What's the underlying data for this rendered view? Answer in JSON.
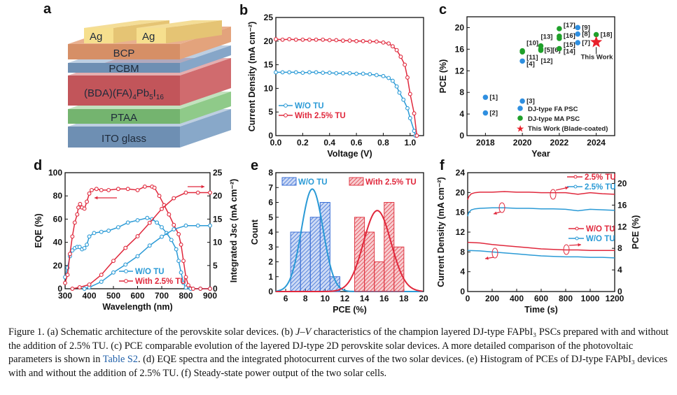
{
  "colors": {
    "red": "#e0283c",
    "blue": "#2a9ad6",
    "green": "#1fa02a",
    "star": "#e8202a",
    "fa_dot": "#2f8fe0",
    "bar_blue": "#3b6fd6",
    "bar_red": "#e03a46"
  },
  "panel_a": {
    "letter": "a",
    "layers": [
      "BCP",
      "PCBM",
      "(BDA)(FA)4Pb5I16",
      "PTAA",
      "ITO glass"
    ],
    "perovskite_parts": [
      "(BDA)(FA)",
      "4",
      "Pb",
      "5",
      "I",
      "16"
    ],
    "electrodes": [
      "Ag",
      "Ag"
    ]
  },
  "chart_data": [
    {
      "panel": "b",
      "type": "line",
      "letter": "b",
      "xlabel": "Voltage (V)",
      "ylabel": "Current Density (mA cm⁻²)",
      "xlim": [
        0,
        1.1
      ],
      "ylim": [
        0,
        25
      ],
      "xticks": [
        "0.0",
        "0.2",
        "0.4",
        "0.6",
        "0.8",
        "1.0"
      ],
      "yticks": [
        "0",
        "5",
        "10",
        "15",
        "20",
        "25"
      ],
      "legend": "lower-left",
      "series": [
        {
          "name": "W/O TU",
          "color": "blue",
          "x": [
            0,
            0.05,
            0.1,
            0.15,
            0.2,
            0.25,
            0.3,
            0.35,
            0.4,
            0.45,
            0.5,
            0.55,
            0.6,
            0.65,
            0.7,
            0.75,
            0.8,
            0.84,
            0.87,
            0.9,
            0.92,
            0.95,
            0.98,
            1.0,
            1.03,
            1.04
          ],
          "y": [
            13.4,
            13.4,
            13.4,
            13.4,
            13.3,
            13.4,
            13.4,
            13.3,
            13.3,
            13.2,
            13.2,
            13.2,
            13.1,
            13.1,
            13.0,
            12.8,
            12.6,
            12.2,
            11.6,
            10.4,
            9.1,
            7.6,
            5.8,
            3.7,
            1.0,
            0
          ]
        },
        {
          "name": "With 2.5% TU",
          "color": "red",
          "x": [
            0,
            0.05,
            0.1,
            0.15,
            0.2,
            0.25,
            0.3,
            0.35,
            0.4,
            0.45,
            0.5,
            0.55,
            0.6,
            0.65,
            0.7,
            0.75,
            0.8,
            0.84,
            0.87,
            0.9,
            0.93,
            0.96,
            0.98,
            1.0,
            1.03,
            1.05
          ],
          "y": [
            20.4,
            20.3,
            20.4,
            20.3,
            20.3,
            20.3,
            20.3,
            20.3,
            20.2,
            20.2,
            20.1,
            20.1,
            20.0,
            20.0,
            19.9,
            19.9,
            19.7,
            19.5,
            18.9,
            18.1,
            16.7,
            15.0,
            12.3,
            8.8,
            4.7,
            0
          ]
        }
      ]
    },
    {
      "panel": "c",
      "type": "scatter",
      "letter": "c",
      "xlabel": "Year",
      "ylabel": "PCE (%)",
      "xlim": [
        2017,
        2025
      ],
      "ylim": [
        0,
        22
      ],
      "xticks": [
        "2018",
        "2020",
        "2022",
        "2024"
      ],
      "yticks": [
        "0",
        "4",
        "8",
        "12",
        "16",
        "20"
      ],
      "legend": "lower-right",
      "series": [
        {
          "name": "DJ-type FA PSC",
          "color": "fa_dot",
          "points": [
            {
              "x": 2018,
              "y": 7.1,
              "label": "[1]"
            },
            {
              "x": 2018,
              "y": 4.2,
              "label": "[2]"
            },
            {
              "x": 2020,
              "y": 6.4,
              "label": "[3]"
            },
            {
              "x": 2020,
              "y": 13.8,
              "label": "[4]"
            },
            {
              "x": 2023,
              "y": 17.2,
              "label": "[7]"
            },
            {
              "x": 2023,
              "y": 18.8,
              "label": "[8]"
            },
            {
              "x": 2023,
              "y": 20.0,
              "label": "[9]"
            }
          ]
        },
        {
          "name": "DJ-type MA PSC",
          "color": "green",
          "points": [
            {
              "x": 2020,
              "y": 15.7,
              "label": "[10]"
            },
            {
              "x": 2020,
              "y": 15.5,
              "label": "[11]"
            },
            {
              "x": 2021,
              "y": 15.8,
              "label": "[12]"
            },
            {
              "x": 2021,
              "y": 16.6,
              "label": "[13]"
            },
            {
              "x": 2021,
              "y": 16.0,
              "label": "[5][6]"
            },
            {
              "x": 2022,
              "y": 16.1,
              "label": "[14]"
            },
            {
              "x": 2022,
              "y": 18.0,
              "label": "[15]"
            },
            {
              "x": 2022,
              "y": 18.4,
              "label": "[16]"
            },
            {
              "x": 2022,
              "y": 19.8,
              "label": "[17]"
            },
            {
              "x": 2024,
              "y": 18.7,
              "label": "[18]"
            }
          ]
        },
        {
          "name": "This Work (Blade-coated)",
          "color": "star",
          "marker": "star",
          "points": [
            {
              "x": 2024,
              "y": 17.3,
              "label": "This Work"
            }
          ]
        }
      ]
    },
    {
      "panel": "d",
      "type": "line",
      "letter": "d",
      "xlabel": "Wavelength (nm)",
      "ylabel": "EQE (%)",
      "y2label": "Integrated Jsc (mA cm⁻²)",
      "xlim": [
        300,
        900
      ],
      "ylim": [
        0,
        100
      ],
      "y2lim": [
        0,
        25
      ],
      "xticks": [
        "300",
        "400",
        "500",
        "600",
        "700",
        "800",
        "900"
      ],
      "yticks": [
        "0",
        "20",
        "40",
        "60",
        "80",
        "100"
      ],
      "y2ticks": [
        "0",
        "5",
        "10",
        "15",
        "20",
        "25"
      ],
      "legend": "lower-center",
      "series": [
        {
          "name": "W/O TU",
          "color": "blue",
          "axis": "left",
          "legend": true,
          "x": [
            300,
            310,
            320,
            330,
            340,
            350,
            360,
            370,
            380,
            390,
            400,
            420,
            450,
            480,
            520,
            560,
            600,
            640,
            660,
            680,
            700,
            720,
            740,
            760,
            770,
            780,
            790,
            800,
            820,
            860,
            900
          ],
          "y": [
            10,
            18,
            28,
            33,
            35,
            36,
            36,
            34,
            35,
            38,
            45,
            48,
            49,
            50,
            53,
            57,
            59,
            61,
            60,
            57,
            53,
            48,
            42,
            34,
            24,
            14,
            5,
            1,
            0,
            0,
            0
          ]
        },
        {
          "name": "With 2.5% TU",
          "color": "red",
          "axis": "left",
          "legend": true,
          "x": [
            300,
            310,
            320,
            330,
            340,
            350,
            355,
            362,
            370,
            380,
            390,
            400,
            410,
            430,
            450,
            480,
            520,
            560,
            600,
            630,
            660,
            670,
            690,
            710,
            730,
            750,
            770,
            780,
            790,
            800,
            810,
            830,
            860,
            900
          ],
          "y": [
            5,
            12,
            30,
            45,
            57,
            64,
            70,
            73,
            70,
            69,
            75,
            82,
            85,
            86,
            85,
            85,
            86,
            86,
            85,
            88,
            88,
            87,
            80,
            72,
            64,
            55,
            47,
            38,
            24,
            10,
            3,
            0,
            0,
            0
          ]
        },
        {
          "name": "W/O TU integrated",
          "color": "blue",
          "axis": "right",
          "legend": false,
          "x": [
            380,
            400,
            450,
            500,
            550,
            600,
            650,
            700,
            750,
            800,
            850,
            900
          ],
          "y": [
            0,
            0.3,
            1.5,
            3.5,
            5.2,
            7.0,
            9.3,
            11.2,
            12.8,
            13.6,
            13.6,
            13.6
          ]
        },
        {
          "name": "With 2.5% TU integrated",
          "color": "red",
          "axis": "right",
          "legend": false,
          "x": [
            330,
            360,
            400,
            450,
            500,
            550,
            600,
            650,
            700,
            750,
            800,
            850,
            900
          ],
          "y": [
            0,
            0.3,
            0.9,
            3.0,
            6.0,
            8.8,
            11.3,
            14.2,
            17.2,
            19.5,
            20.7,
            20.7,
            20.7
          ]
        }
      ]
    },
    {
      "panel": "e",
      "type": "bar",
      "letter": "e",
      "xlabel": "PCE (%)",
      "ylabel": "Count",
      "xlim": [
        5,
        20
      ],
      "ylim": [
        0,
        8
      ],
      "xticks": [
        "6",
        "8",
        "10",
        "12",
        "14",
        "16",
        "18",
        "20"
      ],
      "yticks": [
        "0",
        "1",
        "2",
        "3",
        "4",
        "5",
        "6",
        "7",
        "8"
      ],
      "legend": "top",
      "series": [
        {
          "name": "W/O TU",
          "color": "bar_blue",
          "line": "blue",
          "bin_centers": [
            7,
            8,
            9,
            10,
            11
          ],
          "counts": [
            4,
            4,
            5,
            6,
            1
          ],
          "fit_mean": 8.7,
          "fit_sd": 1.1,
          "fit_peak": 6.9
        },
        {
          "name": "With 2.5%  TU",
          "color": "bar_red",
          "line": "red",
          "bin_centers": [
            13.5,
            14.5,
            15.5,
            16.5,
            17.5
          ],
          "counts": [
            5,
            4,
            2,
            6,
            3
          ],
          "fit_mean": 15.3,
          "fit_sd": 1.4,
          "fit_peak": 5.45
        }
      ]
    },
    {
      "panel": "f",
      "type": "line",
      "letter": "f",
      "xlabel": "Time (s)",
      "ylabel": "Current Density (mA cm⁻²)",
      "y2label": "PCE (%)",
      "xlim": [
        0,
        1200
      ],
      "ylim": [
        0,
        24
      ],
      "y2lim": [
        0,
        22
      ],
      "xticks": [
        "0",
        "200",
        "400",
        "600",
        "800",
        "1000",
        "1200"
      ],
      "yticks": [
        "0",
        "4",
        "8",
        "12",
        "16",
        "20",
        "24"
      ],
      "y2ticks": [
        "0",
        "4",
        "8",
        "12",
        "16",
        "20"
      ],
      "legend": "right",
      "series": [
        {
          "name": "2.5% TU",
          "color": "red",
          "axis": "right",
          "x": [
            0,
            10,
            30,
            60,
            100,
            200,
            300,
            400,
            500,
            600,
            700,
            800,
            900,
            1000,
            1100,
            1200
          ],
          "y": [
            17.0,
            17.6,
            18.1,
            18.3,
            18.4,
            18.4,
            18.5,
            18.4,
            18.4,
            18.3,
            18.3,
            18.3,
            18.0,
            18.3,
            18.1,
            18.0
          ]
        },
        {
          "name": "2.5% TU",
          "color": "blue",
          "axis": "left",
          "x": [
            0,
            10,
            30,
            60,
            100,
            200,
            300,
            400,
            500,
            600,
            700,
            800,
            900,
            1000,
            1100,
            1200
          ],
          "y": [
            15.2,
            16.0,
            16.5,
            16.7,
            16.8,
            16.9,
            16.9,
            16.8,
            16.8,
            16.7,
            16.7,
            16.6,
            16.3,
            16.6,
            16.5,
            16.4
          ]
        },
        {
          "name": "W/O TU",
          "color": "red",
          "axis": "right",
          "x": [
            0,
            100,
            200,
            300,
            400,
            500,
            600,
            700,
            800,
            900,
            1000,
            1100,
            1200
          ],
          "y": [
            9.1,
            9.0,
            8.7,
            8.5,
            8.3,
            8.1,
            7.9,
            7.8,
            7.7,
            7.7,
            7.6,
            7.6,
            7.6
          ]
        },
        {
          "name": "W/O TU",
          "color": "blue",
          "axis": "left",
          "x": [
            0,
            100,
            200,
            300,
            400,
            500,
            600,
            700,
            800,
            900,
            1000,
            1100,
            1200
          ],
          "y": [
            8.3,
            8.2,
            8.0,
            7.8,
            7.6,
            7.4,
            7.2,
            7.1,
            7.0,
            7.0,
            6.9,
            6.9,
            6.8
          ]
        }
      ]
    }
  ],
  "caption": {
    "s1": "Figure 1. (a) Schematic architecture of the perovskite solar devices. (b) ",
    "s2": "J",
    "s3": "–",
    "s4": "V",
    "s5": " characteristics of the champion layered DJ-type FAPbI₃ PSCs prepared with and without the addition of 2.5% TU. (c) PCE comparable evolution of the layered DJ-type 2D perovskite solar devices. A more detailed comparison of the photovoltaic parameters is shown in ",
    "link": "Table S2",
    "s6": ". (d) EQE spectra and the integrated photocurrent curves of the two solar devices. (e) Histogram of PCEs of DJ-type FAPbI₃ devices with and without the addition of 2.5% TU. (f) Steady-state power output of the two solar cells."
  }
}
